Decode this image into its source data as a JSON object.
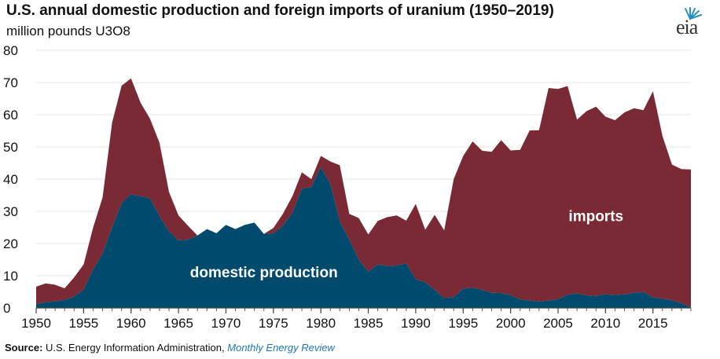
{
  "header": {
    "title": "U.S. annual domestic production and foreign imports of uranium (1950–2019)",
    "subtitle": "million pounds U3O8"
  },
  "logo": {
    "text": "eia"
  },
  "footer": {
    "source_label": "Source:",
    "source_text": "U.S. Energy Information Administration,",
    "source_publication": "Monthly Energy Review"
  },
  "colors": {
    "domestic": "#004a6e",
    "imports": "#7a2a35",
    "text": "#111111"
  },
  "chart_data": {
    "type": "area",
    "stacked": true,
    "title": "U.S. annual domestic production and foreign imports of uranium (1950–2019)",
    "ylabel": "million pounds U3O8",
    "xlim": [
      1950,
      2019
    ],
    "ylim": [
      0,
      80
    ],
    "x_ticks": [
      1950,
      1955,
      1960,
      1965,
      1970,
      1975,
      1980,
      1985,
      1990,
      1995,
      2000,
      2005,
      2010,
      2015
    ],
    "y_ticks": [
      0,
      10,
      20,
      30,
      40,
      50,
      60,
      70,
      80
    ],
    "x": [
      1950,
      1951,
      1952,
      1953,
      1954,
      1955,
      1956,
      1957,
      1958,
      1959,
      1960,
      1961,
      1962,
      1963,
      1964,
      1965,
      1966,
      1967,
      1968,
      1969,
      1970,
      1971,
      1972,
      1973,
      1974,
      1975,
      1976,
      1977,
      1978,
      1979,
      1980,
      1981,
      1982,
      1983,
      1984,
      1985,
      1986,
      1987,
      1988,
      1989,
      1990,
      1991,
      1992,
      1993,
      1994,
      1995,
      1996,
      1997,
      1998,
      1999,
      2000,
      2001,
      2002,
      2003,
      2004,
      2005,
      2006,
      2007,
      2008,
      2009,
      2010,
      2011,
      2012,
      2013,
      2014,
      2015,
      2016,
      2017,
      2018,
      2019
    ],
    "series": [
      {
        "name": "domestic production",
        "values": [
          1.2,
          1.8,
          2.0,
          2.5,
          3.5,
          5.7,
          11.9,
          16.9,
          25.0,
          32.5,
          35.3,
          34.7,
          34.0,
          28.5,
          23.7,
          21.0,
          21.2,
          22.5,
          24.5,
          23.2,
          25.8,
          24.5,
          25.8,
          26.5,
          23.0,
          23.2,
          25.5,
          29.5,
          37.0,
          37.5,
          43.7,
          38.5,
          26.8,
          21.2,
          14.9,
          11.3,
          13.5,
          13.0,
          13.2,
          13.8,
          8.9,
          8.0,
          5.6,
          3.1,
          3.4,
          6.0,
          6.3,
          5.6,
          4.7,
          4.6,
          4.0,
          2.6,
          2.3,
          2.0,
          2.3,
          2.7,
          4.1,
          4.5,
          3.9,
          3.7,
          4.2,
          4.0,
          4.2,
          4.7,
          4.9,
          3.3,
          2.9,
          2.4,
          1.5,
          0.2
        ]
      },
      {
        "name": "imports",
        "values": [
          5.4,
          5.8,
          5.2,
          3.6,
          6.0,
          7.8,
          13.0,
          17.4,
          32.5,
          36.5,
          36.0,
          29.0,
          24.7,
          22.8,
          12.3,
          7.7,
          4.3,
          0.0,
          0.0,
          0.0,
          0.0,
          0.0,
          0.0,
          0.0,
          0.0,
          1.6,
          3.7,
          5.2,
          5.1,
          2.5,
          3.5,
          7.0,
          17.5,
          8.0,
          13.0,
          11.5,
          13.5,
          15.2,
          15.5,
          13.3,
          23.4,
          16.3,
          23.3,
          21.0,
          36.6,
          41.2,
          45.4,
          43.2,
          43.8,
          47.5,
          44.9,
          46.5,
          52.8,
          53.2,
          66.0,
          65.3,
          64.8,
          54.0,
          57.2,
          58.8,
          55.2,
          54.3,
          56.5,
          57.3,
          56.5,
          64.0,
          50.5,
          42.1,
          41.6,
          42.8
        ]
      }
    ],
    "annotations": [
      {
        "text": "domestic production",
        "x": 1974,
        "y": 9.5
      },
      {
        "text": "imports",
        "x": 2009,
        "y": 27
      }
    ]
  }
}
